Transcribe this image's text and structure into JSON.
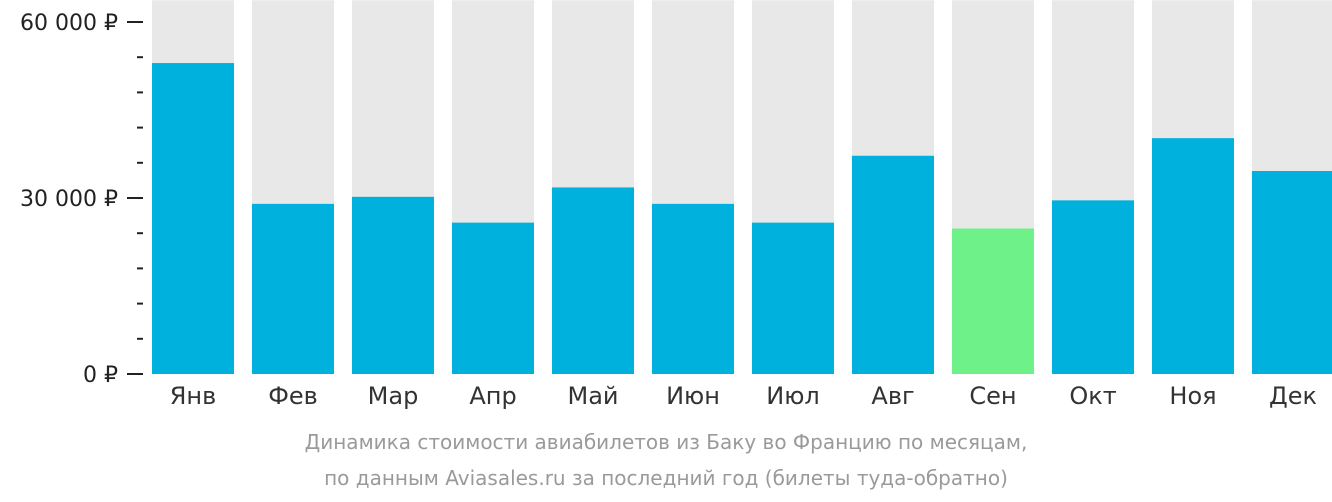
{
  "chart_data": {
    "type": "bar",
    "categories": [
      "Янв",
      "Фев",
      "Мар",
      "Апр",
      "Май",
      "Июн",
      "Июл",
      "Авг",
      "Сен",
      "Окт",
      "Ноя",
      "Дек"
    ],
    "values": [
      53000,
      29000,
      30200,
      25800,
      31800,
      29000,
      25800,
      37200,
      24800,
      29600,
      40200,
      34600
    ],
    "ylim": [
      0,
      62000
    ],
    "yticks": [
      {
        "value": 0,
        "label": "0 ₽"
      },
      {
        "value": 30000,
        "label": "30 000 ₽"
      },
      {
        "value": 60000,
        "label": "60 000 ₽"
      }
    ],
    "minor_tick_step": 6000,
    "highlight_index": 8,
    "colors": {
      "bar": "#00b0dd",
      "highlight": "#6ef189",
      "background_bar": "#e8e8e8",
      "axis": "#222222"
    },
    "grid": false,
    "legend": "none"
  },
  "caption": {
    "line1": "Динамика стоимости авиабилетов из Баку во Францию по месяцам,",
    "line2": "по данным Aviasales.ru за последний год (билеты туда-обратно)"
  }
}
